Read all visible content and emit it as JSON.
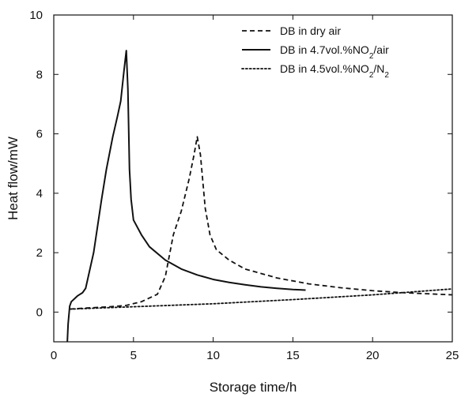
{
  "chart_data": {
    "type": "line",
    "xlabel": "Storage time/h",
    "ylabel": "Heat flow/mW",
    "xlim": [
      0,
      25
    ],
    "ylim": [
      -1,
      10
    ],
    "xticks": [
      0,
      5,
      10,
      15,
      20,
      25
    ],
    "yticks": [
      0,
      2,
      4,
      6,
      8,
      10
    ],
    "grid": false,
    "legend_position": "top-right",
    "series": [
      {
        "name": "DB in dry air",
        "legend_parts": [
          {
            "text": "DB in dry air"
          }
        ],
        "color": "#111111",
        "style": "dashed",
        "x": [
          1.0,
          1.5,
          2.5,
          3.5,
          4.5,
          5.5,
          6.5,
          7.0,
          7.5,
          8.0,
          8.5,
          8.8,
          9.0,
          9.2,
          9.5,
          9.8,
          10.2,
          11.0,
          12.0,
          14.0,
          16.0,
          18.0,
          20.0,
          22.0,
          25.0
        ],
        "y": [
          0.1,
          0.12,
          0.15,
          0.18,
          0.22,
          0.35,
          0.6,
          1.2,
          2.6,
          3.4,
          4.5,
          5.3,
          5.9,
          5.3,
          3.5,
          2.6,
          2.1,
          1.75,
          1.45,
          1.15,
          0.95,
          0.82,
          0.72,
          0.65,
          0.58
        ]
      },
      {
        "name": "DB in 4.7vol.%NO2/air",
        "legend_parts": [
          {
            "text": "DB in 4.7vol.%NO"
          },
          {
            "text": "2",
            "sub": true
          },
          {
            "text": "/air"
          }
        ],
        "color": "#111111",
        "style": "solid",
        "x": [
          0.85,
          0.9,
          1.0,
          1.1,
          1.5,
          1.8,
          2.0,
          2.5,
          3.0,
          3.3,
          3.7,
          4.0,
          4.2,
          4.4,
          4.55,
          4.65,
          4.75,
          4.85,
          5.0,
          5.5,
          6.0,
          7.0,
          8.0,
          9.0,
          10.0,
          11.0,
          12.0,
          13.0,
          14.0,
          15.0,
          15.8
        ],
        "y": [
          -1.0,
          -0.4,
          0.2,
          0.35,
          0.55,
          0.65,
          0.8,
          2.0,
          3.8,
          4.8,
          5.9,
          6.6,
          7.1,
          8.1,
          8.8,
          7.5,
          4.8,
          3.8,
          3.1,
          2.6,
          2.2,
          1.75,
          1.45,
          1.25,
          1.1,
          1.0,
          0.92,
          0.85,
          0.8,
          0.76,
          0.74
        ]
      },
      {
        "name": "DB in 4.5vol.%NO2/N2",
        "legend_parts": [
          {
            "text": "DB in 4.5vol.%NO"
          },
          {
            "text": "2",
            "sub": true
          },
          {
            "text": "/N"
          },
          {
            "text": "2",
            "sub": true
          }
        ],
        "color": "#111111",
        "style": "dotted",
        "x": [
          1.0,
          2.0,
          5.0,
          10.0,
          15.0,
          20.0,
          25.0
        ],
        "y": [
          0.1,
          0.12,
          0.18,
          0.28,
          0.42,
          0.58,
          0.78
        ]
      }
    ]
  }
}
